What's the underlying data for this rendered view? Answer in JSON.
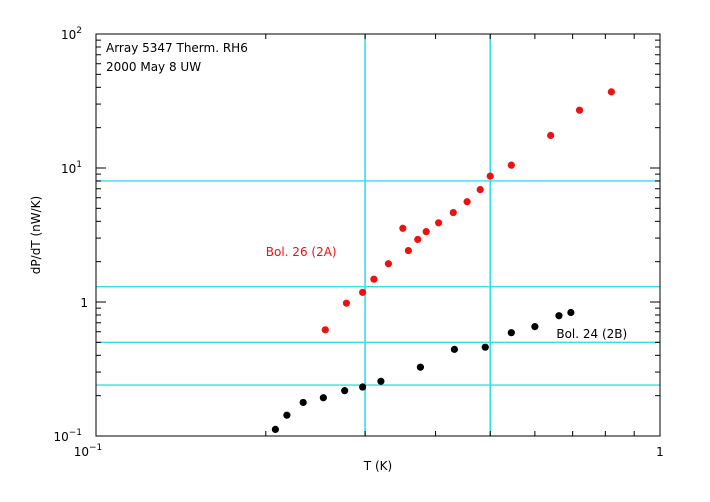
{
  "chart_data": {
    "type": "scatter",
    "x_scale": "log",
    "y_scale": "log",
    "xlim": [
      0.1,
      1
    ],
    "ylim": [
      0.1,
      100
    ],
    "xlabel": "T (K)",
    "ylabel": "dP/dT (nW/K)",
    "x_ticks": [
      {
        "value": 0.1,
        "mantissa": "10",
        "exponent": "−1"
      },
      {
        "value": 1,
        "mantissa": "1",
        "exponent": ""
      }
    ],
    "y_ticks": [
      {
        "value": 0.1,
        "mantissa": "10",
        "exponent": "−1"
      },
      {
        "value": 1,
        "mantissa": "1",
        "exponent": ""
      },
      {
        "value": 10,
        "mantissa": "10",
        "exponent": "1"
      },
      {
        "value": 100,
        "mantissa": "10",
        "exponent": "2"
      }
    ],
    "annotations": {
      "line1": "Array 5347 Therm. RH6",
      "line2": "2000 May 8 UW"
    },
    "reference_lines": {
      "color": "#33e0e8",
      "vertical_x": [
        0.3,
        0.5
      ],
      "horizontal_y": [
        8.0,
        1.3,
        0.5,
        0.24
      ]
    },
    "series": [
      {
        "name": "Bol. 26 (2A)",
        "color": "#ee1111",
        "label_anchor": [
          0.2,
          2.2
        ],
        "points": [
          [
            0.255,
            0.62
          ],
          [
            0.278,
            0.98
          ],
          [
            0.297,
            1.18
          ],
          [
            0.311,
            1.48
          ],
          [
            0.33,
            1.93
          ],
          [
            0.35,
            3.55
          ],
          [
            0.358,
            2.42
          ],
          [
            0.372,
            2.93
          ],
          [
            0.385,
            3.35
          ],
          [
            0.405,
            3.9
          ],
          [
            0.43,
            4.65
          ],
          [
            0.455,
            5.6
          ],
          [
            0.48,
            6.9
          ],
          [
            0.5,
            8.7
          ],
          [
            0.545,
            10.5
          ],
          [
            0.64,
            17.5
          ],
          [
            0.72,
            27
          ],
          [
            0.82,
            37
          ]
        ]
      },
      {
        "name": "Bol. 24 (2B)",
        "color": "#000000",
        "label_anchor": [
          0.655,
          0.54
        ],
        "points": [
          [
            0.208,
            0.112
          ],
          [
            0.218,
            0.143
          ],
          [
            0.233,
            0.178
          ],
          [
            0.253,
            0.193
          ],
          [
            0.276,
            0.218
          ],
          [
            0.297,
            0.232
          ],
          [
            0.32,
            0.256
          ],
          [
            0.376,
            0.326
          ],
          [
            0.432,
            0.443
          ],
          [
            0.49,
            0.46
          ],
          [
            0.545,
            0.59
          ],
          [
            0.6,
            0.655
          ],
          [
            0.662,
            0.79
          ],
          [
            0.695,
            0.835
          ]
        ]
      }
    ]
  }
}
